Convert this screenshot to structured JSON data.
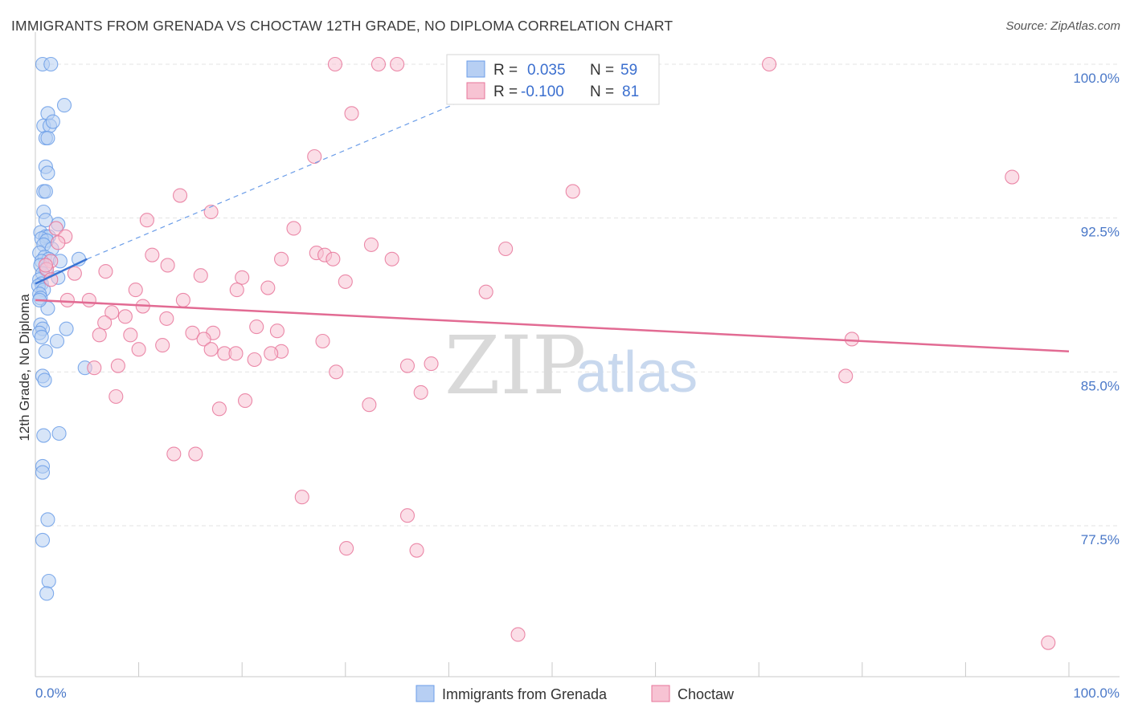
{
  "title": "IMMIGRANTS FROM GRENADA VS CHOCTAW 12TH GRADE, NO DIPLOMA CORRELATION CHART",
  "source": "Source: ZipAtlas.com",
  "watermark": {
    "zip": "ZIP",
    "atlas": "atlas"
  },
  "chart_data": {
    "type": "scatter",
    "xlabel": "",
    "ylabel": "12th Grade, No Diploma",
    "xlim": [
      0,
      100
    ],
    "ylim": [
      70.5,
      101.2
    ],
    "x_tick_labels": {
      "left": "0.0%",
      "right": "100.0%"
    },
    "x_minor_ticks": [
      10,
      20,
      30,
      40,
      50,
      60,
      70,
      80,
      90,
      100
    ],
    "y_ticks": [
      {
        "value": 100.0,
        "label": "100.0%"
      },
      {
        "value": 92.5,
        "label": "92.5%"
      },
      {
        "value": 85.0,
        "label": "85.0%"
      },
      {
        "value": 77.5,
        "label": "77.5%"
      }
    ],
    "legend": {
      "rows": [
        {
          "r_label": "R =",
          "r_value": "0.035",
          "n_label": "N =",
          "n_value": "59"
        },
        {
          "r_label": "R =",
          "r_value": "-0.100",
          "n_label": "N =",
          "n_value": "81"
        }
      ]
    },
    "series": [
      {
        "name": "Immigrants from Grenada",
        "color": "#6b9de8",
        "fill": "#b7cff3",
        "trend": {
          "x0": 0.0,
          "y0": 89.3,
          "x1": 5.0,
          "y1": 90.5,
          "dash_x1": 45.0,
          "dash_y1": 99.0
        },
        "points": [
          [
            0.7,
            100.0
          ],
          [
            1.5,
            100.0
          ],
          [
            2.8,
            98.0
          ],
          [
            1.2,
            97.6
          ],
          [
            0.8,
            97.0
          ],
          [
            1.4,
            97.0
          ],
          [
            1.7,
            97.2
          ],
          [
            1.0,
            96.4
          ],
          [
            1.2,
            96.4
          ],
          [
            1.0,
            95.0
          ],
          [
            1.2,
            94.7
          ],
          [
            0.8,
            93.8
          ],
          [
            1.0,
            93.8
          ],
          [
            0.8,
            92.8
          ],
          [
            1.0,
            92.4
          ],
          [
            2.2,
            92.2
          ],
          [
            0.5,
            91.8
          ],
          [
            1.0,
            91.6
          ],
          [
            1.3,
            91.6
          ],
          [
            0.6,
            91.5
          ],
          [
            1.1,
            91.4
          ],
          [
            0.8,
            91.2
          ],
          [
            1.6,
            91.0
          ],
          [
            0.4,
            90.8
          ],
          [
            0.9,
            90.6
          ],
          [
            1.3,
            90.5
          ],
          [
            0.6,
            90.4
          ],
          [
            2.4,
            90.4
          ],
          [
            4.2,
            90.5
          ],
          [
            0.5,
            90.2
          ],
          [
            1.0,
            90.0
          ],
          [
            0.7,
            89.8
          ],
          [
            2.2,
            89.6
          ],
          [
            0.4,
            89.5
          ],
          [
            0.6,
            89.3
          ],
          [
            0.3,
            89.2
          ],
          [
            0.8,
            89.0
          ],
          [
            0.4,
            88.8
          ],
          [
            0.5,
            88.6
          ],
          [
            1.2,
            88.1
          ],
          [
            0.5,
            87.3
          ],
          [
            0.7,
            87.1
          ],
          [
            3.0,
            87.1
          ],
          [
            0.4,
            86.9
          ],
          [
            0.6,
            86.7
          ],
          [
            2.1,
            86.5
          ],
          [
            1.0,
            86.0
          ],
          [
            4.8,
            85.2
          ],
          [
            0.7,
            84.8
          ],
          [
            0.9,
            84.6
          ],
          [
            0.8,
            81.9
          ],
          [
            2.3,
            82.0
          ],
          [
            0.7,
            80.4
          ],
          [
            0.7,
            80.1
          ],
          [
            1.2,
            77.8
          ],
          [
            0.7,
            76.8
          ],
          [
            1.3,
            74.8
          ],
          [
            1.1,
            74.2
          ],
          [
            0.4,
            88.5
          ]
        ]
      },
      {
        "name": "Choctaw",
        "color": "#e7759a",
        "fill": "#f7c3d3",
        "trend": {
          "x0": 0.0,
          "y0": 88.5,
          "x1": 100.0,
          "y1": 86.0
        },
        "points": [
          [
            29.0,
            100.0
          ],
          [
            33.2,
            100.0
          ],
          [
            35.0,
            100.0
          ],
          [
            71.0,
            100.0
          ],
          [
            30.6,
            97.6
          ],
          [
            27.0,
            95.5
          ],
          [
            94.5,
            94.5
          ],
          [
            52.0,
            93.8
          ],
          [
            14.0,
            93.6
          ],
          [
            17.0,
            92.8
          ],
          [
            10.8,
            92.4
          ],
          [
            25.0,
            92.0
          ],
          [
            2.0,
            92.0
          ],
          [
            2.9,
            91.6
          ],
          [
            2.2,
            91.3
          ],
          [
            32.5,
            91.2
          ],
          [
            45.5,
            91.0
          ],
          [
            11.3,
            90.7
          ],
          [
            27.2,
            90.8
          ],
          [
            28.0,
            90.7
          ],
          [
            23.8,
            90.5
          ],
          [
            28.8,
            90.5
          ],
          [
            34.5,
            90.5
          ],
          [
            1.5,
            90.4
          ],
          [
            12.8,
            90.2
          ],
          [
            1.1,
            90.0
          ],
          [
            6.8,
            89.9
          ],
          [
            3.8,
            89.8
          ],
          [
            16.0,
            89.7
          ],
          [
            20.0,
            89.6
          ],
          [
            1.5,
            89.5
          ],
          [
            30.0,
            89.4
          ],
          [
            19.5,
            89.0
          ],
          [
            22.5,
            89.1
          ],
          [
            9.7,
            89.0
          ],
          [
            43.6,
            88.9
          ],
          [
            3.1,
            88.5
          ],
          [
            5.2,
            88.5
          ],
          [
            14.3,
            88.5
          ],
          [
            10.4,
            88.2
          ],
          [
            7.4,
            87.9
          ],
          [
            12.7,
            87.6
          ],
          [
            8.7,
            87.7
          ],
          [
            6.7,
            87.4
          ],
          [
            21.4,
            87.2
          ],
          [
            15.2,
            86.9
          ],
          [
            17.2,
            86.9
          ],
          [
            23.4,
            87.0
          ],
          [
            6.2,
            86.8
          ],
          [
            9.2,
            86.8
          ],
          [
            16.3,
            86.6
          ],
          [
            27.8,
            86.5
          ],
          [
            12.3,
            86.3
          ],
          [
            10.0,
            86.1
          ],
          [
            17.0,
            86.1
          ],
          [
            18.3,
            85.9
          ],
          [
            19.4,
            85.9
          ],
          [
            23.8,
            86.0
          ],
          [
            22.8,
            85.9
          ],
          [
            21.2,
            85.6
          ],
          [
            79.0,
            86.6
          ],
          [
            8.0,
            85.3
          ],
          [
            5.7,
            85.2
          ],
          [
            36.0,
            85.3
          ],
          [
            38.3,
            85.4
          ],
          [
            29.1,
            85.0
          ],
          [
            78.4,
            84.8
          ],
          [
            37.3,
            84.0
          ],
          [
            7.8,
            83.8
          ],
          [
            20.3,
            83.6
          ],
          [
            32.3,
            83.4
          ],
          [
            17.8,
            83.2
          ],
          [
            13.4,
            81.0
          ],
          [
            15.5,
            81.0
          ],
          [
            25.8,
            78.9
          ],
          [
            36.0,
            78.0
          ],
          [
            30.1,
            76.4
          ],
          [
            36.9,
            76.3
          ],
          [
            46.7,
            72.2
          ],
          [
            98.0,
            71.8
          ],
          [
            1.0,
            90.2
          ]
        ]
      }
    ],
    "bottom_legend": [
      "Immigrants from Grenada",
      "Choctaw"
    ]
  }
}
